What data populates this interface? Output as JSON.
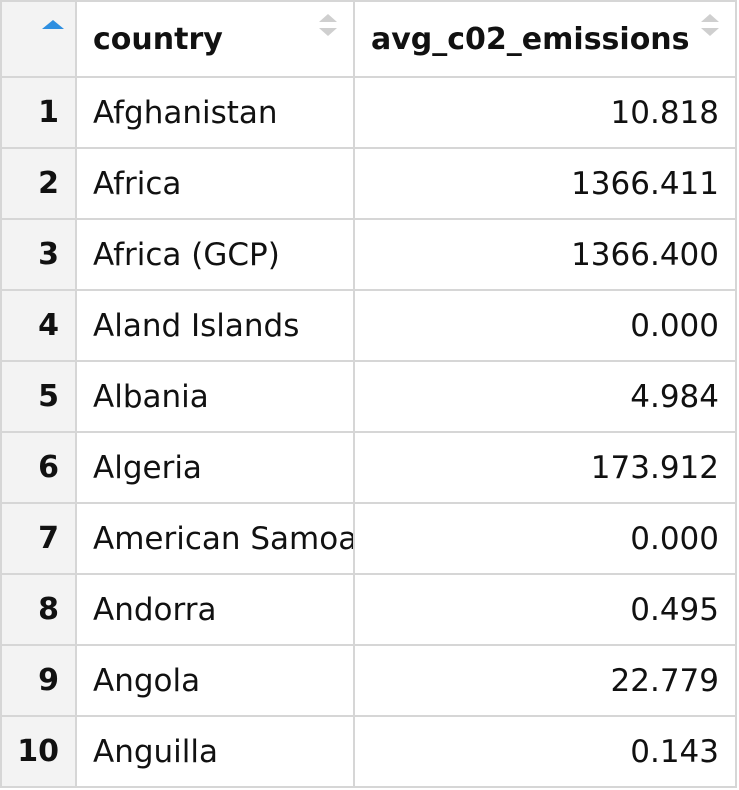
{
  "table": {
    "columns": [
      {
        "label": "",
        "sort": "ascending"
      },
      {
        "label": "country",
        "sort": "none"
      },
      {
        "label": "avg_c02_emissions",
        "sort": "none"
      }
    ],
    "rows": [
      {
        "index": "1",
        "country": "Afghanistan",
        "avg_c02_emissions": "10.818"
      },
      {
        "index": "2",
        "country": "Africa",
        "avg_c02_emissions": "1366.411"
      },
      {
        "index": "3",
        "country": "Africa (GCP)",
        "avg_c02_emissions": "1366.400"
      },
      {
        "index": "4",
        "country": "Aland Islands",
        "avg_c02_emissions": "0.000"
      },
      {
        "index": "5",
        "country": "Albania",
        "avg_c02_emissions": "4.984"
      },
      {
        "index": "6",
        "country": "Algeria",
        "avg_c02_emissions": "173.912"
      },
      {
        "index": "7",
        "country": "American Samoa",
        "avg_c02_emissions": "0.000"
      },
      {
        "index": "8",
        "country": "Andorra",
        "avg_c02_emissions": "0.495"
      },
      {
        "index": "9",
        "country": "Angola",
        "avg_c02_emissions": "22.779"
      },
      {
        "index": "10",
        "country": "Anguilla",
        "avg_c02_emissions": "0.143"
      }
    ]
  },
  "icons": {
    "sorted_ascending": "sort-ascending-icon",
    "sortable": "sort-icon"
  },
  "colors": {
    "sort_active": "#2f8fe0",
    "sort_inactive": "#cfcfcf",
    "index_background": "#f3f3f3",
    "grid_line": "#d6d6d6"
  }
}
